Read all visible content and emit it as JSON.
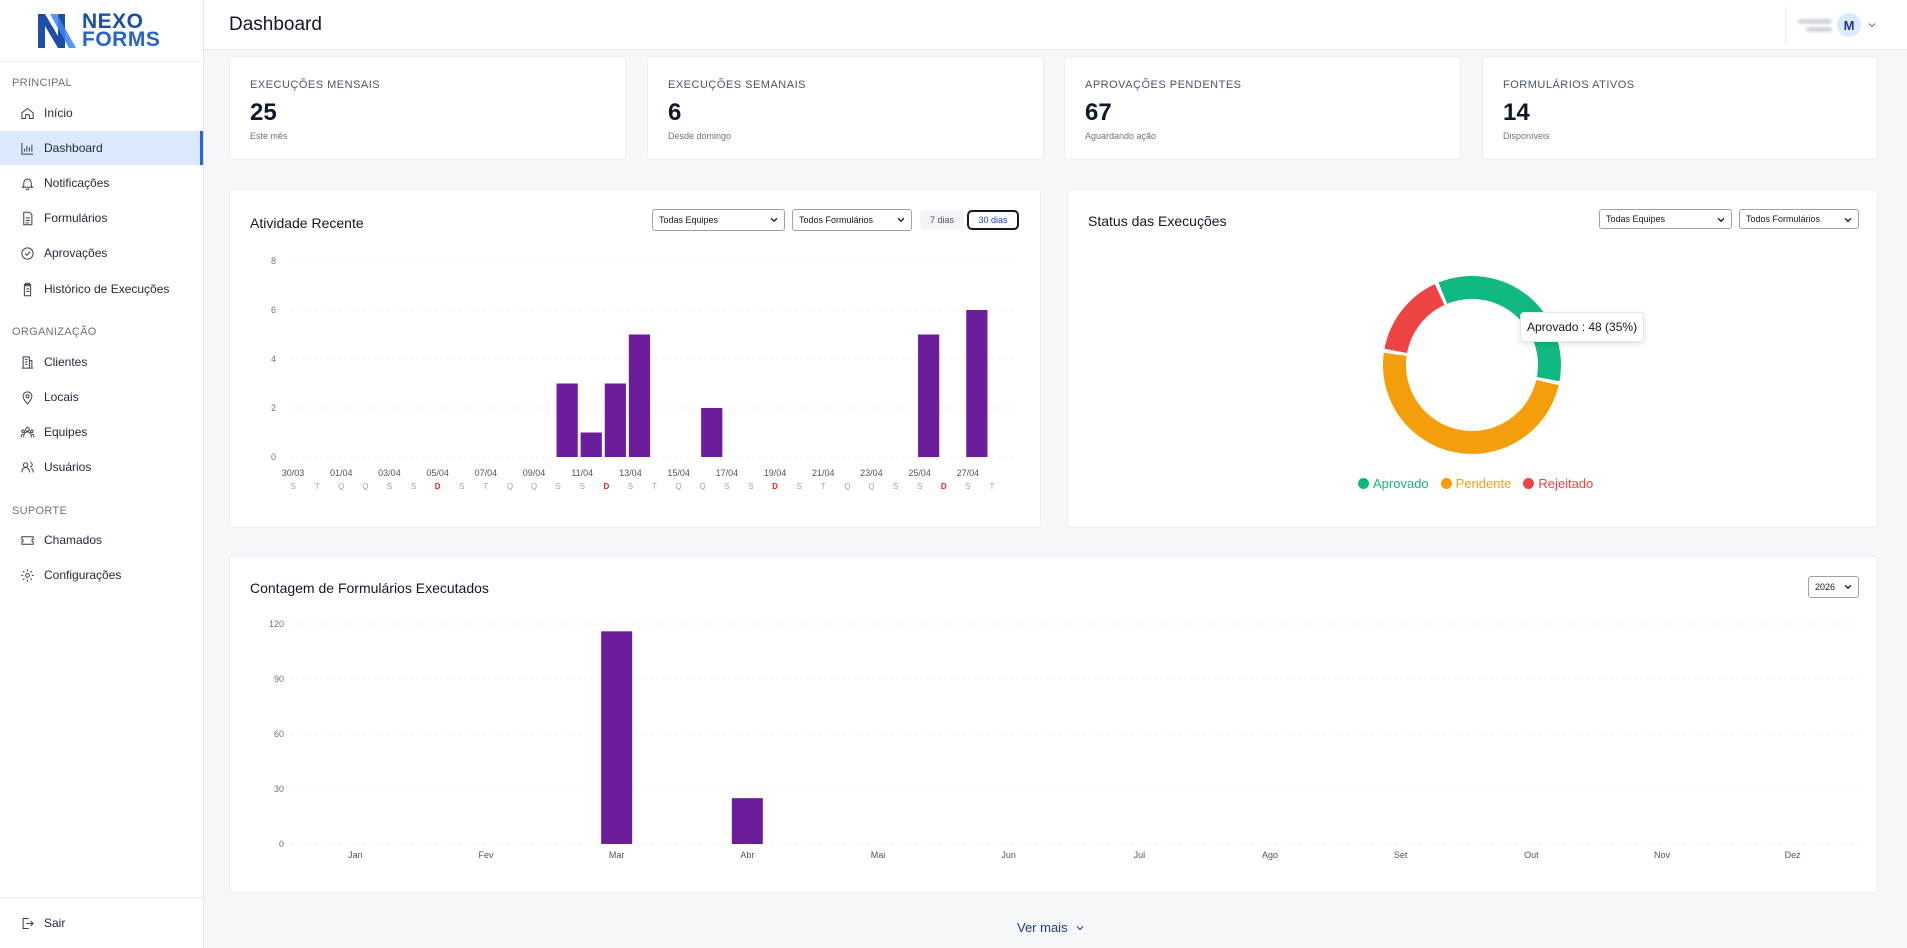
{
  "brand": {
    "line1": "NEXO",
    "line2": "FORMS"
  },
  "sidebar": {
    "sections": [
      {
        "label": "PRINCIPAL"
      },
      {
        "label": "ORGANIZAÇÃO"
      },
      {
        "label": "SUPORTE"
      }
    ],
    "items": [
      {
        "label": "Início",
        "icon": "home-icon"
      },
      {
        "label": "Dashboard",
        "icon": "bar-chart-icon",
        "active": true
      },
      {
        "label": "Notificações",
        "icon": "bell-icon"
      },
      {
        "label": "Formulários",
        "icon": "document-icon"
      },
      {
        "label": "Aprovações",
        "icon": "check-circle-icon"
      },
      {
        "label": "Histórico de Execuções",
        "icon": "clipboard-icon"
      },
      {
        "label": "Clientes",
        "icon": "building-icon"
      },
      {
        "label": "Locais",
        "icon": "map-pin-icon"
      },
      {
        "label": "Equipes",
        "icon": "team-icon"
      },
      {
        "label": "Usuários",
        "icon": "users-icon"
      },
      {
        "label": "Chamados",
        "icon": "ticket-icon"
      },
      {
        "label": "Configurações",
        "icon": "gear-icon"
      }
    ],
    "logout": "Sair"
  },
  "header": {
    "title": "Dashboard",
    "avatar_initial": "M"
  },
  "stats": [
    {
      "label": "EXECUÇÕES MENSAIS",
      "value": "25",
      "sub": "Este mês"
    },
    {
      "label": "EXECUÇÕES SEMANAIS",
      "value": "6",
      "sub": "Desde domingo"
    },
    {
      "label": "APROVAÇÕES PENDENTES",
      "value": "67",
      "sub": "Aguardando ação"
    },
    {
      "label": "FORMULÁRIOS ATIVOS",
      "value": "14",
      "sub": "Disponíveis"
    }
  ],
  "activity": {
    "title": "Atividade Recente",
    "team_select": "Todas Equipes",
    "form_select": "Todos Formulários",
    "range_7": "7 dias",
    "range_30": "30 dias"
  },
  "status": {
    "title": "Status das Execuções",
    "team_select": "Todas Equipes",
    "form_select": "Todos Formulários",
    "tooltip": "Aprovado : 48 (35%)"
  },
  "monthly": {
    "title": "Contagem de Formulários Executados",
    "year_select": "2026"
  },
  "ver_mais": "Ver mais",
  "chart_data": [
    {
      "type": "bar",
      "title": "Atividade Recente",
      "ylim": [
        0,
        8
      ],
      "yticks": [
        0,
        2,
        4,
        6,
        8
      ],
      "date_labels": [
        "30/03",
        "01/04",
        "03/04",
        "05/04",
        "07/04",
        "09/04",
        "11/04",
        "13/04",
        "15/04",
        "17/04",
        "19/04",
        "21/04",
        "23/04",
        "25/04",
        "27/04"
      ],
      "weekday_labels": [
        "S",
        "T",
        "Q",
        "Q",
        "S",
        "S",
        "D",
        "S",
        "T",
        "Q",
        "Q",
        "S",
        "S",
        "D",
        "S",
        "T",
        "Q",
        "Q",
        "S",
        "S",
        "D",
        "S",
        "T",
        "Q",
        "Q",
        "S",
        "S",
        "D",
        "S",
        "T"
      ],
      "values": [
        0,
        0,
        0,
        0,
        0,
        0,
        0,
        0,
        0,
        0,
        0,
        3,
        1,
        3,
        5,
        0,
        0,
        2,
        0,
        0,
        0,
        0,
        0,
        0,
        0,
        0,
        5,
        0,
        6,
        0
      ],
      "color": "#6b1d9b",
      "sunday_color": "#dc2626"
    },
    {
      "type": "pie",
      "title": "Status das Execuções",
      "categories": [
        "Aprovado",
        "Pendente",
        "Rejeitado"
      ],
      "values": [
        48,
        68,
        22
      ],
      "colors": [
        "#10b981",
        "#f59e0b",
        "#ef4444"
      ]
    },
    {
      "type": "bar",
      "title": "Contagem de Formulários Executados",
      "categories": [
        "Jan",
        "Fev",
        "Mar",
        "Abr",
        "Mai",
        "Jun",
        "Jul",
        "Ago",
        "Set",
        "Out",
        "Nov",
        "Dez"
      ],
      "values": [
        0,
        0,
        116,
        25,
        0,
        0,
        0,
        0,
        0,
        0,
        0,
        0
      ],
      "ylim": [
        0,
        120
      ],
      "yticks": [
        0,
        30,
        60,
        90,
        120
      ],
      "color": "#6b1d9b"
    }
  ]
}
